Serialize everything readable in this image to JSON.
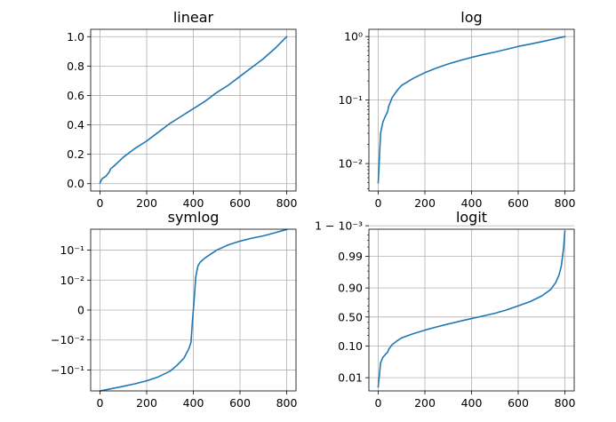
{
  "colors": {
    "series": "#1f77b4",
    "grid": "#b0b0b0"
  },
  "chart_data": [
    {
      "type": "line",
      "title": "linear",
      "yscale": "linear",
      "grid": true,
      "xlim": [
        -40,
        840
      ],
      "ylim": [
        -0.05,
        1.05
      ],
      "xticks": [
        0,
        200,
        400,
        600,
        800
      ],
      "xticklabels": [
        "0",
        "200",
        "400",
        "600",
        "800"
      ],
      "yticks": [
        0.0,
        0.2,
        0.4,
        0.6,
        0.8,
        1.0
      ],
      "yticklabels": [
        "0.0",
        "0.2",
        "0.4",
        "0.6",
        "0.8",
        "1.0"
      ],
      "series": [
        {
          "x": [
            0,
            4,
            10,
            25,
            40,
            45,
            60,
            100,
            150,
            200,
            250,
            300,
            350,
            400,
            450,
            500,
            550,
            600,
            650,
            700,
            750,
            800
          ],
          "y": [
            0.005,
            0.02,
            0.035,
            0.05,
            0.08,
            0.1,
            0.12,
            0.18,
            0.24,
            0.29,
            0.35,
            0.41,
            0.46,
            0.51,
            0.56,
            0.62,
            0.67,
            0.73,
            0.79,
            0.85,
            0.92,
            1.0
          ]
        }
      ]
    },
    {
      "type": "line",
      "title": "log",
      "yscale": "log",
      "grid": true,
      "xlim": [
        -40,
        840
      ],
      "ylim": [
        0.0037,
        1.3
      ],
      "xticks": [
        0,
        200,
        400,
        600,
        800
      ],
      "xticklabels": [
        "0",
        "200",
        "400",
        "600",
        "800"
      ],
      "yticks": [
        0.01,
        0.1,
        1
      ],
      "yticklabels": [
        "10⁻²",
        "10⁻¹",
        "10⁰"
      ],
      "series": [
        {
          "x": [
            0,
            2,
            5,
            10,
            20,
            30,
            40,
            45,
            60,
            80,
            100,
            150,
            200,
            250,
            300,
            350,
            400,
            450,
            500,
            550,
            600,
            650,
            700,
            750,
            800
          ],
          "y": [
            0.005,
            0.007,
            0.012,
            0.03,
            0.045,
            0.055,
            0.065,
            0.08,
            0.11,
            0.14,
            0.17,
            0.22,
            0.27,
            0.32,
            0.37,
            0.42,
            0.47,
            0.52,
            0.57,
            0.63,
            0.7,
            0.76,
            0.83,
            0.91,
            1.0
          ]
        }
      ]
    },
    {
      "type": "line",
      "title": "symlog",
      "yscale": "symlog",
      "linthresh": 0.01,
      "grid": true,
      "xlim": [
        -40,
        840
      ],
      "ylim": [
        -0.5,
        0.5
      ],
      "xticks": [
        0,
        200,
        400,
        600,
        800
      ],
      "xticklabels": [
        "0",
        "200",
        "400",
        "600",
        "800"
      ],
      "yticks": [
        -0.1,
        -0.01,
        0,
        0.01,
        0.1
      ],
      "yticklabels": [
        "−10⁻¹",
        "−10⁻²",
        "0",
        "10⁻²",
        "10⁻¹"
      ],
      "series": [
        {
          "x": [
            0,
            50,
            100,
            150,
            200,
            250,
            300,
            330,
            360,
            380,
            390,
            395,
            400,
            405,
            410,
            415,
            420,
            430,
            450,
            500,
            550,
            600,
            650,
            700,
            750,
            800
          ],
          "y": [
            -0.5,
            -0.42,
            -0.35,
            -0.29,
            -0.23,
            -0.17,
            -0.11,
            -0.07,
            -0.04,
            -0.02,
            -0.012,
            -0.005,
            0.0,
            0.005,
            0.012,
            0.02,
            0.03,
            0.04,
            0.055,
            0.1,
            0.15,
            0.2,
            0.25,
            0.3,
            0.38,
            0.49
          ]
        }
      ]
    },
    {
      "type": "line",
      "title": "logit",
      "yscale": "logit",
      "grid": true,
      "xlim": [
        -40,
        840
      ],
      "ylim": [
        0.0037,
        0.9987
      ],
      "xticks": [
        0,
        200,
        400,
        600,
        800
      ],
      "xticklabels": [
        "0",
        "200",
        "400",
        "600",
        "800"
      ],
      "yticks": [
        0.01,
        0.1,
        0.5,
        0.9,
        0.99,
        0.999
      ],
      "yticklabels": [
        "0.01",
        "0.10",
        "0.50",
        "0.90",
        "0.99",
        "1 − 10⁻³"
      ],
      "series": [
        {
          "x": [
            0,
            2,
            5,
            10,
            20,
            30,
            40,
            45,
            60,
            80,
            100,
            150,
            200,
            250,
            300,
            350,
            400,
            450,
            500,
            550,
            600,
            650,
            700,
            740,
            760,
            775,
            785,
            790,
            795,
            797,
            800
          ],
          "y": [
            0.005,
            0.008,
            0.012,
            0.03,
            0.045,
            0.055,
            0.065,
            0.08,
            0.11,
            0.14,
            0.17,
            0.22,
            0.27,
            0.32,
            0.37,
            0.42,
            0.47,
            0.52,
            0.57,
            0.63,
            0.7,
            0.76,
            0.83,
            0.89,
            0.93,
            0.96,
            0.98,
            0.99,
            0.995,
            0.997,
            0.9985
          ]
        }
      ]
    }
  ]
}
